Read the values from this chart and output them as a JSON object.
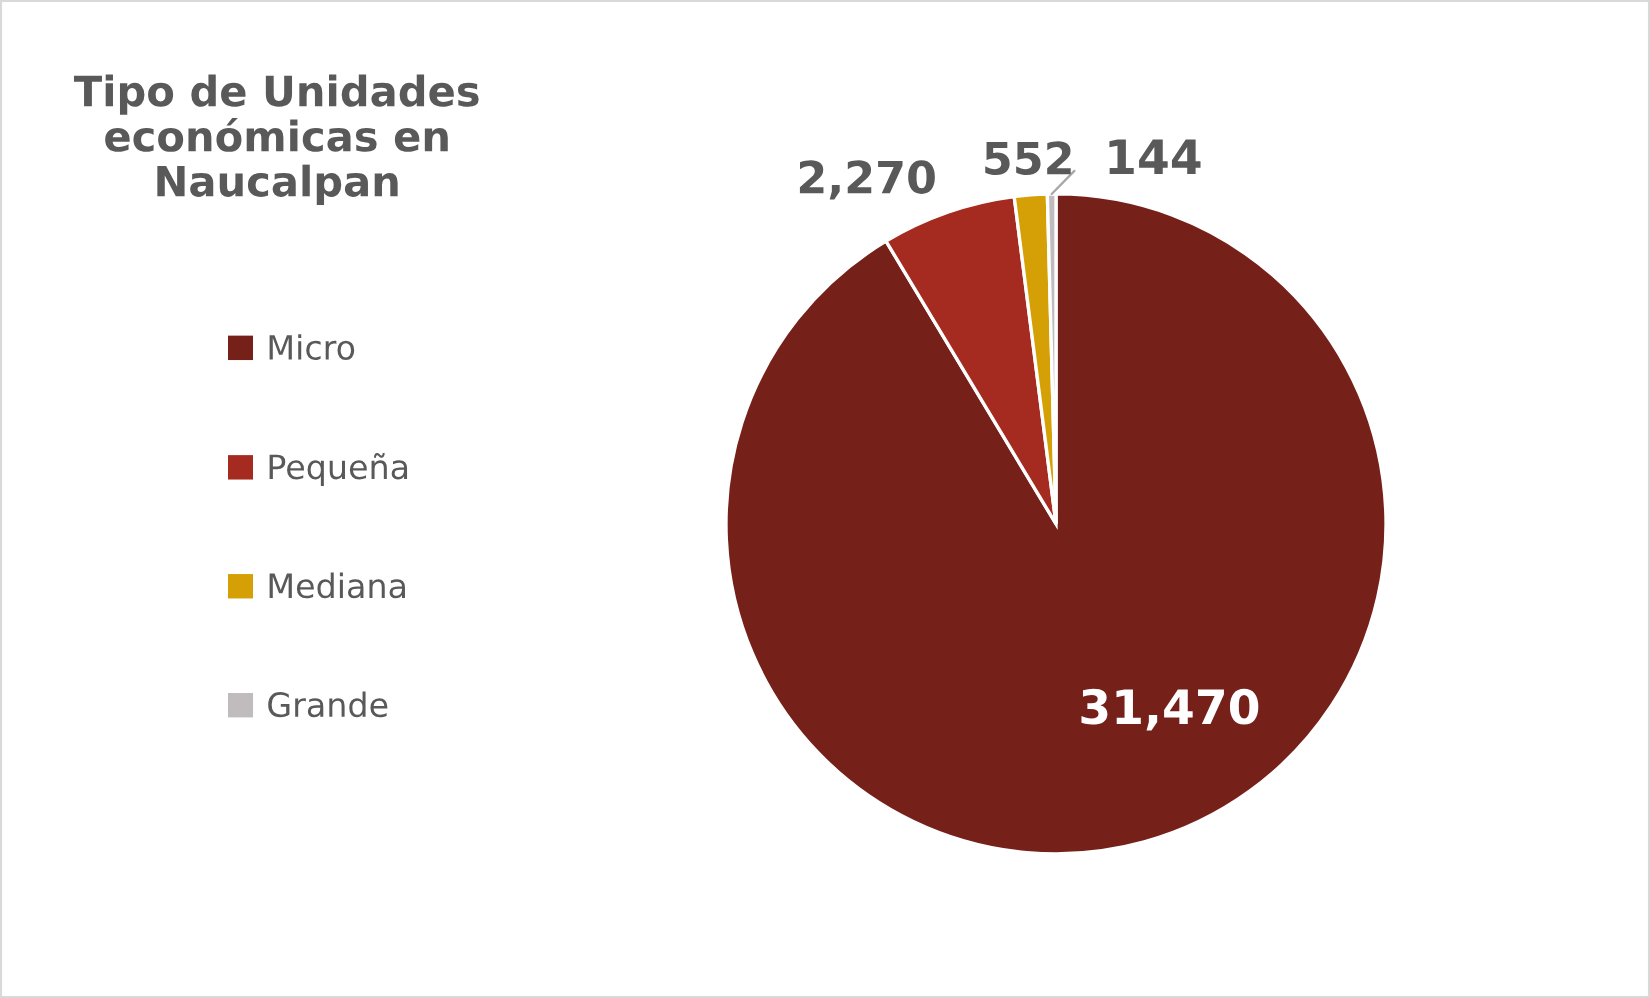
{
  "chart_data": {
    "type": "pie",
    "title": "Tipo de Unidades económicas en Naucalpan",
    "categories": [
      "Micro",
      "Pequeña",
      "Mediana",
      "Grande"
    ],
    "values": [
      31470,
      2270,
      552,
      144
    ],
    "colors": [
      "#76201a",
      "#a52a1f",
      "#d4a006",
      "#c0bcbd"
    ],
    "value_labels": [
      "31,470",
      "2,270",
      "552",
      "144"
    ],
    "legend": "left"
  }
}
